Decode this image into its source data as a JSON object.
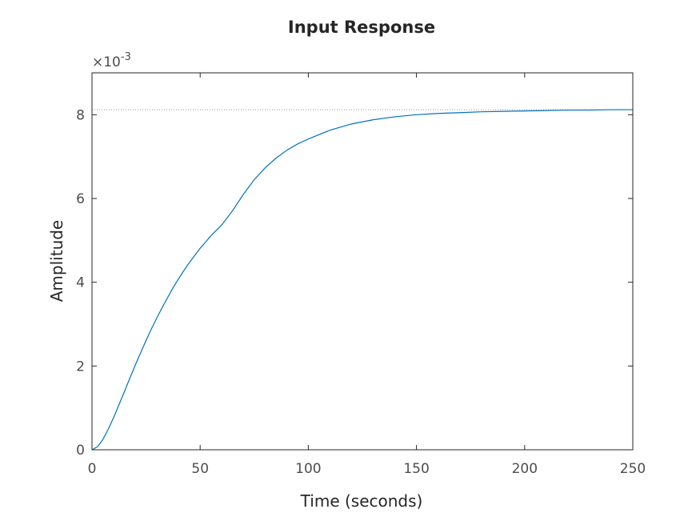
{
  "chart_data": {
    "type": "line",
    "title": "Input Response",
    "xlabel": "Time (seconds)",
    "ylabel": "Amplitude",
    "y_exponent_label": "×10",
    "y_exponent_power": "-3",
    "xlim": [
      0,
      250
    ],
    "ylim": [
      0,
      9
    ],
    "x_ticks": [
      0,
      50,
      100,
      150,
      200,
      250
    ],
    "y_ticks": [
      0,
      2,
      4,
      6,
      8
    ],
    "grid": false,
    "steady_state": 8.12,
    "line_color": "#0072BD",
    "reference_line_color": "#888888",
    "series": [
      {
        "x": [
          0,
          2.5,
          5,
          7.5,
          10,
          12.5,
          15,
          17.5,
          20,
          22.5,
          25,
          27.5,
          30,
          32.5,
          35,
          37.5,
          40,
          42.5,
          45,
          47.5,
          50,
          55,
          60,
          65,
          70,
          75,
          80,
          85,
          90,
          95,
          100,
          110,
          120,
          130,
          140,
          150,
          160,
          170,
          180,
          190,
          200,
          210,
          220,
          230,
          240,
          250
        ],
        "values": [
          0,
          0.07,
          0.24,
          0.49,
          0.77,
          1.08,
          1.39,
          1.71,
          2.02,
          2.32,
          2.61,
          2.89,
          3.15,
          3.4,
          3.64,
          3.87,
          4.08,
          4.28,
          4.47,
          4.64,
          4.81,
          5.11,
          5.37,
          5.71,
          6.1,
          6.45,
          6.73,
          6.96,
          7.15,
          7.3,
          7.42,
          7.63,
          7.78,
          7.88,
          7.95,
          8.0,
          8.03,
          8.05,
          8.07,
          8.08,
          8.09,
          8.1,
          8.11,
          8.11,
          8.12,
          8.12
        ]
      }
    ]
  }
}
